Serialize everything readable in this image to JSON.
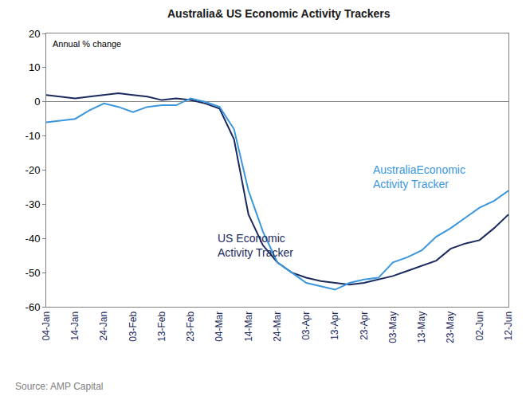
{
  "chart_data": {
    "type": "line",
    "title": "Australia& US Economic Activity Trackers",
    "y_label": "Annual % change",
    "source": "Source: AMP Capital",
    "categories": [
      "04-Jan",
      null,
      "14-Jan",
      null,
      "24-Jan",
      null,
      "03-Feb",
      null,
      "13-Feb",
      null,
      "23-Feb",
      null,
      "04-Mar",
      null,
      "14-Mar",
      null,
      "24-Mar",
      null,
      "03-Apr",
      null,
      "13-Apr",
      null,
      "23-Apr",
      null,
      "03-May",
      null,
      "13-May",
      null,
      "23-May",
      null,
      "02-Jun",
      null,
      "12-Jun"
    ],
    "series": [
      {
        "name": "US Economic\nActivity Tracker",
        "color": "#1b2a5e",
        "values": [
          2,
          1.5,
          1,
          1.5,
          2,
          2.5,
          2,
          1.5,
          0.5,
          1,
          0.5,
          -0.5,
          -2,
          -11,
          -33,
          -42,
          -47,
          -50,
          -51.5,
          -52.5,
          -53,
          -53.5,
          -53,
          -52,
          -51,
          -49.5,
          -48,
          -46.5,
          -43,
          -41.5,
          -40.5,
          -37,
          -33
        ]
      },
      {
        "name": "AustraliaEconomic\nActivity Tracker",
        "color": "#3a96dd",
        "values": [
          -6,
          -5.5,
          -5,
          -2.5,
          -0.5,
          -1.5,
          -3,
          -1.5,
          -1,
          -1,
          1,
          0,
          -1.5,
          -8,
          -26,
          -38,
          -47,
          -50,
          -53,
          -54,
          -55,
          -53,
          -52,
          -51.5,
          -47,
          -45.5,
          -43.5,
          -39.5,
          -37,
          -34,
          -31,
          -29,
          -26
        ]
      }
    ],
    "ylim": [
      -60,
      20
    ],
    "yticks": [
      -60,
      -50,
      -40,
      -30,
      -20,
      -10,
      0,
      10,
      20
    ],
    "grid": false
  }
}
